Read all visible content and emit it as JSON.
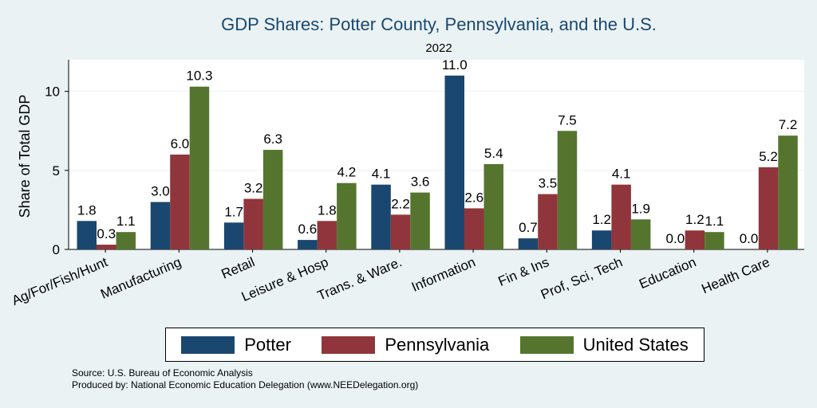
{
  "chart_data": {
    "type": "bar",
    "title": "GDP Shares: Potter County, Pennsylvania, and the U.S.",
    "subtitle": "2022",
    "xlabel": "",
    "ylabel": "Share of Total GDP",
    "ylim": [
      0,
      12
    ],
    "yticks": [
      0,
      5,
      10
    ],
    "categories": [
      "Ag/For/Fish/Hunt",
      "Manufacturing",
      "Retail",
      "Leisure & Hosp",
      "Trans. & Ware.",
      "Information",
      "Fin & Ins",
      "Prof, Sci, Tech",
      "Education",
      "Health Care"
    ],
    "series": [
      {
        "name": "Potter",
        "color": "#1a476f",
        "values": [
          1.8,
          3.0,
          1.7,
          0.6,
          4.1,
          11.0,
          0.7,
          1.2,
          0.0,
          0.0
        ],
        "labels": [
          "1.8",
          "3.0",
          "1.7",
          "0.6",
          "4.1",
          "11.0",
          "0.7",
          "1.2",
          "0.0",
          "0.0"
        ]
      },
      {
        "name": "Pennsylvania",
        "color": "#90353b",
        "values": [
          0.3,
          6.0,
          3.2,
          1.8,
          2.2,
          2.6,
          3.5,
          4.1,
          1.2,
          5.2
        ],
        "labels": [
          "0.3",
          "6.0",
          "3.2",
          "1.8",
          "2.2",
          "2.6",
          "3.5",
          "4.1",
          "1.2",
          "5.2"
        ]
      },
      {
        "name": "United States",
        "color": "#55752f",
        "values": [
          1.1,
          10.3,
          6.3,
          4.2,
          3.6,
          5.4,
          7.5,
          1.9,
          1.1,
          7.2
        ],
        "labels": [
          "1.1",
          "10.3",
          "6.3",
          "4.2",
          "3.6",
          "5.4",
          "7.5",
          "1.9",
          "1.1",
          "7.2"
        ]
      }
    ],
    "legend_position": "bottom",
    "grid": true,
    "plot_background": "#ffffff",
    "page_background": "#eaf2f3"
  },
  "notes": {
    "source": "Source: U.S. Bureau of Economic Analysis",
    "produced": "Produced by: National Economic Education Delegation (www.NEEDelegation.org)"
  }
}
